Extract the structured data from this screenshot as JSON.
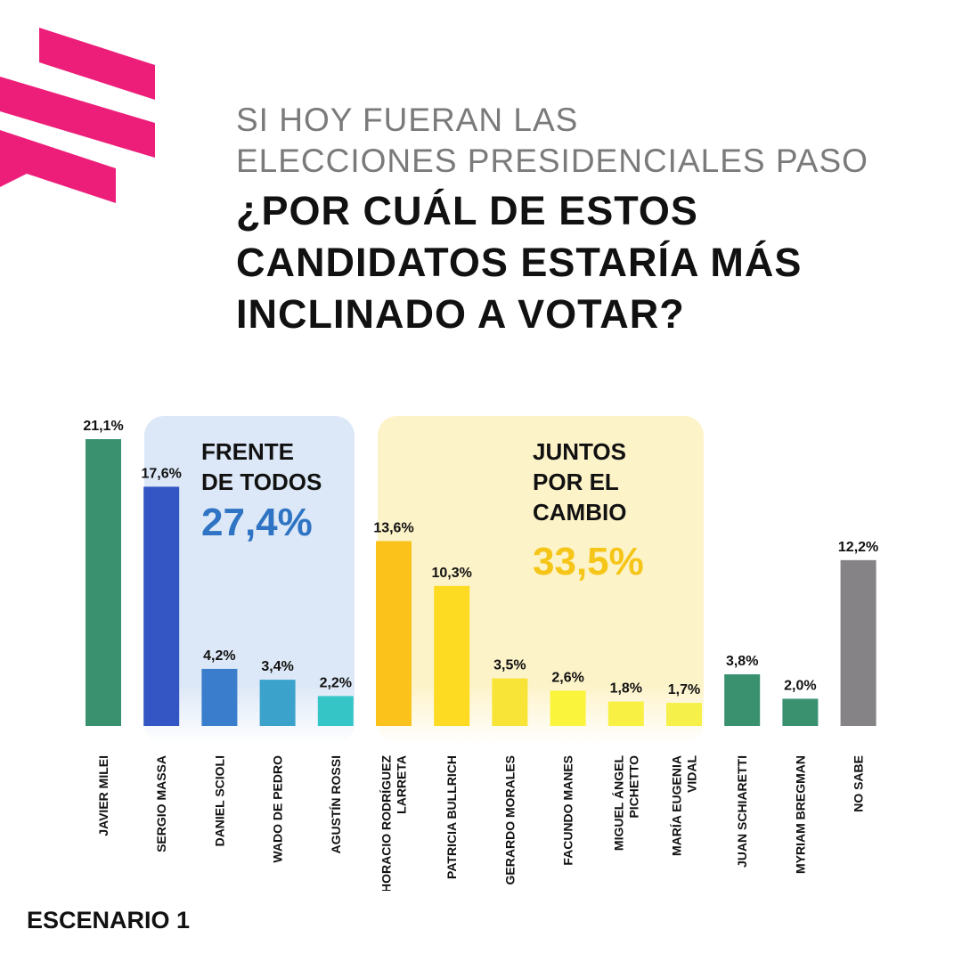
{
  "header": {
    "subtitle_line1": "SI HOY FUERAN LAS",
    "subtitle_line2": "ELECCIONES PRESIDENCIALES PASO",
    "title_line1": "¿POR CUÁL DE ESTOS",
    "title_line2": "CANDIDATOS ESTARÍA MÁS",
    "title_line3": "INCLINADO A VOTAR?"
  },
  "groups": {
    "fdt": {
      "line1": "FRENTE",
      "line2": "DE TODOS",
      "total": "27,4%",
      "color": "#2f74c4",
      "bg": "#dce8f7"
    },
    "jxc": {
      "line1": "JUNTOS",
      "line2": "POR EL",
      "line3": "CAMBIO",
      "total": "33,5%",
      "color": "#f5c518",
      "bg": "#fdf3c9"
    }
  },
  "footer": {
    "scenario": "ESCENARIO 1"
  },
  "chart_data": {
    "type": "bar",
    "title": "¿POR CUÁL DE ESTOS CANDIDATOS ESTARÍA MÁS INCLINADO A VOTAR?",
    "xlabel": "",
    "ylabel": "",
    "ylim": [
      0,
      21.1
    ],
    "categories": [
      "JAVIER MILEI",
      "SERGIO MASSA",
      "DANIEL SCIOLI",
      "WADO DE PEDRO",
      "AGUSTÍN ROSSI",
      "HORACIO RODRÍGUEZ LARRETA",
      "PATRICIA BULLRICH",
      "GERARDO MORALES",
      "FACUNDO MANES",
      "MIGUEL ÁNGEL PICHETTO",
      "MARÍA EUGENIA VIDAL",
      "JUAN SCHIARETTI",
      "MYRIAM BREGMAN",
      "NO SABE"
    ],
    "label_lines": [
      [
        "JAVIER MILEI"
      ],
      [
        "SERGIO MASSA"
      ],
      [
        "DANIEL SCIOLI"
      ],
      [
        "WADO DE PEDRO"
      ],
      [
        "AGUSTÍN ROSSI"
      ],
      [
        "HORACIO RODRÍGUEZ",
        "LARRETA"
      ],
      [
        "PATRICIA BULLRICH"
      ],
      [
        "GERARDO MORALES"
      ],
      [
        "FACUNDO MANES"
      ],
      [
        "MIGUEL ÁNGEL",
        "PICHETTO"
      ],
      [
        "MARÍA EUGENIA",
        "VIDAL"
      ],
      [
        "JUAN SCHIARETTI"
      ],
      [
        "MYRIAM BREGMAN"
      ],
      [
        "NO SABE"
      ]
    ],
    "values": [
      21.1,
      17.6,
      4.2,
      3.4,
      2.2,
      13.6,
      10.3,
      3.5,
      2.6,
      1.8,
      1.7,
      3.8,
      2.0,
      12.2
    ],
    "value_labels": [
      "21,1%",
      "17,6%",
      "4,2%",
      "3,4%",
      "2,2%",
      "13,6%",
      "10,3%",
      "3,5%",
      "2,6%",
      "1,8%",
      "1,7%",
      "3,8%",
      "2,0%",
      "12,2%"
    ],
    "colors": [
      "#3a9170",
      "#3456c4",
      "#3a7dcc",
      "#3ba2cc",
      "#35c5c7",
      "#fbc21c",
      "#fddb22",
      "#f7e436",
      "#fbf43c",
      "#f8f144",
      "#f6f04a",
      "#3a9170",
      "#3a9170",
      "#858385"
    ]
  }
}
